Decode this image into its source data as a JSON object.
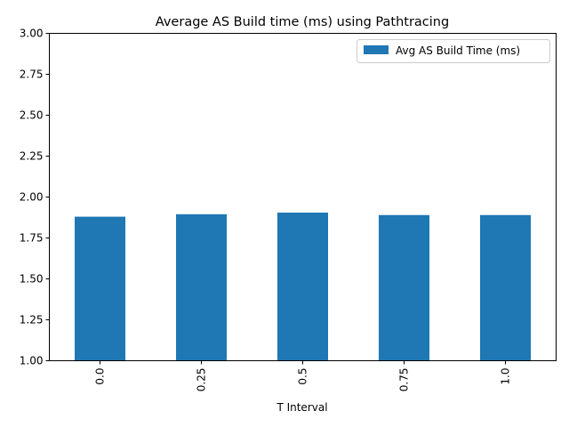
{
  "chart_data": {
    "type": "bar",
    "title": "Average AS Build time (ms) using Pathtracing",
    "xlabel": "T Interval",
    "ylabel": "",
    "categories": [
      "0.0",
      "0.25",
      "0.5",
      "0.75",
      "1.0"
    ],
    "series": [
      {
        "name": "Avg AS Build Time (ms)",
        "values": [
          1.88,
          1.895,
          1.905,
          1.89,
          1.89
        ],
        "color": "#1f77b4"
      }
    ],
    "ylim": [
      1.0,
      3.0
    ],
    "yticks": [
      "1.00",
      "1.25",
      "1.50",
      "1.75",
      "2.00",
      "2.25",
      "2.50",
      "2.75",
      "3.00"
    ],
    "grid": false,
    "legend_position": "top-right"
  }
}
